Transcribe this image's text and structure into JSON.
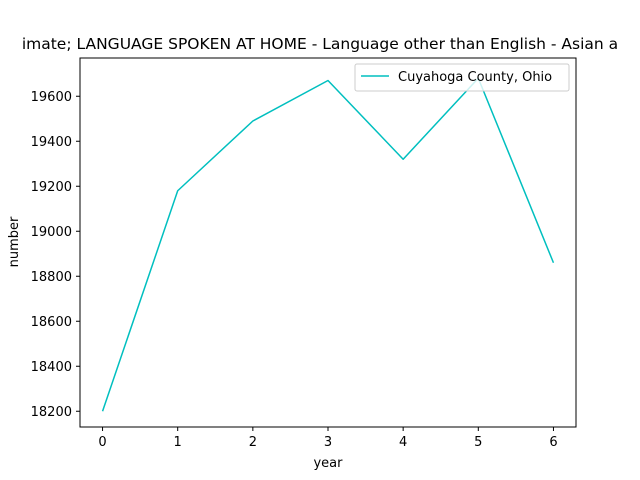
{
  "chart_data": {
    "type": "line",
    "title": "imate; LANGUAGE SPOKEN AT HOME - Language other than English - Asian a",
    "xlabel": "year",
    "ylabel": "number",
    "x": [
      0,
      1,
      2,
      3,
      4,
      5,
      6
    ],
    "xlim": [
      -0.3,
      6.3
    ],
    "ylim": [
      18130,
      19770
    ],
    "xticks": [
      0,
      1,
      2,
      3,
      4,
      5,
      6
    ],
    "yticks": [
      18200,
      18400,
      18600,
      18800,
      19000,
      19200,
      19400,
      19600
    ],
    "grid": false,
    "legend_position": "top-right",
    "series": [
      {
        "name": "Cuyahoga County, Ohio",
        "color": "#00bfbf",
        "values": [
          18200,
          19180,
          19490,
          19670,
          19320,
          19680,
          18860
        ]
      }
    ]
  }
}
